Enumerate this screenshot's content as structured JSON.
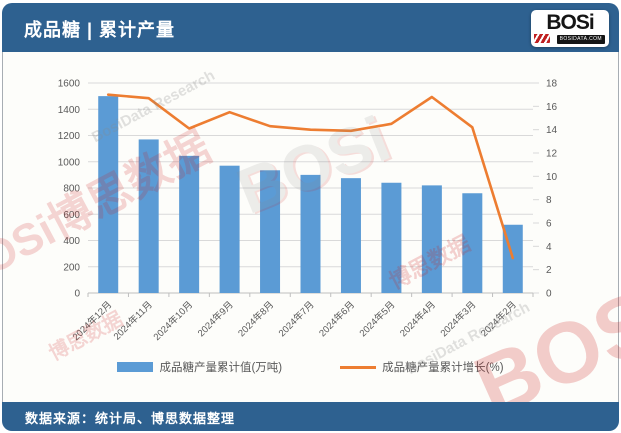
{
  "header": {
    "title": "成品糖 | 累计产量",
    "logo": {
      "text": "BOSi",
      "subtext": "BOSIDATA.COM"
    }
  },
  "footer": {
    "source": "数据来源：统计局、博思数据整理"
  },
  "watermarks": {
    "brand_full": "BOSi博思数据",
    "research": "BosiData Research",
    "brand": "BOSi",
    "brand_cn": "博思数据",
    "research_short": "Research"
  },
  "chart_data": {
    "type": "bar",
    "title": "成品糖 | 累计产量",
    "categories": [
      "2024年12月",
      "2024年11月",
      "2024年10月",
      "2024年9月",
      "2024年8月",
      "2024年7月",
      "2024年6月",
      "2024年5月",
      "2024年4月",
      "2024年3月",
      "2024年2月"
    ],
    "series": [
      {
        "name": "成品糖产量累计值(万吨)",
        "type": "bar",
        "axis": "left",
        "color": "#5b9bd5",
        "values": [
          1500,
          1170,
          1045,
          970,
          935,
          900,
          875,
          840,
          820,
          760,
          520
        ]
      },
      {
        "name": "成品糖产量累计增长(%)",
        "type": "line",
        "axis": "right",
        "color": "#ed7d31",
        "values": [
          17.0,
          16.7,
          14.1,
          15.5,
          14.3,
          14.0,
          13.9,
          14.5,
          16.8,
          14.2,
          3.0
        ]
      }
    ],
    "left_axis": {
      "min": 0,
      "max": 1600,
      "step": 200
    },
    "right_axis": {
      "min": 0,
      "max": 18,
      "step": 2
    },
    "grid": true,
    "legend_position": "bottom",
    "colors": {
      "bar": "#5b9bd5",
      "line": "#ed7d31",
      "grid": "#d9d9d9",
      "axis_text": "#595959",
      "banner": "#2e6190"
    }
  }
}
